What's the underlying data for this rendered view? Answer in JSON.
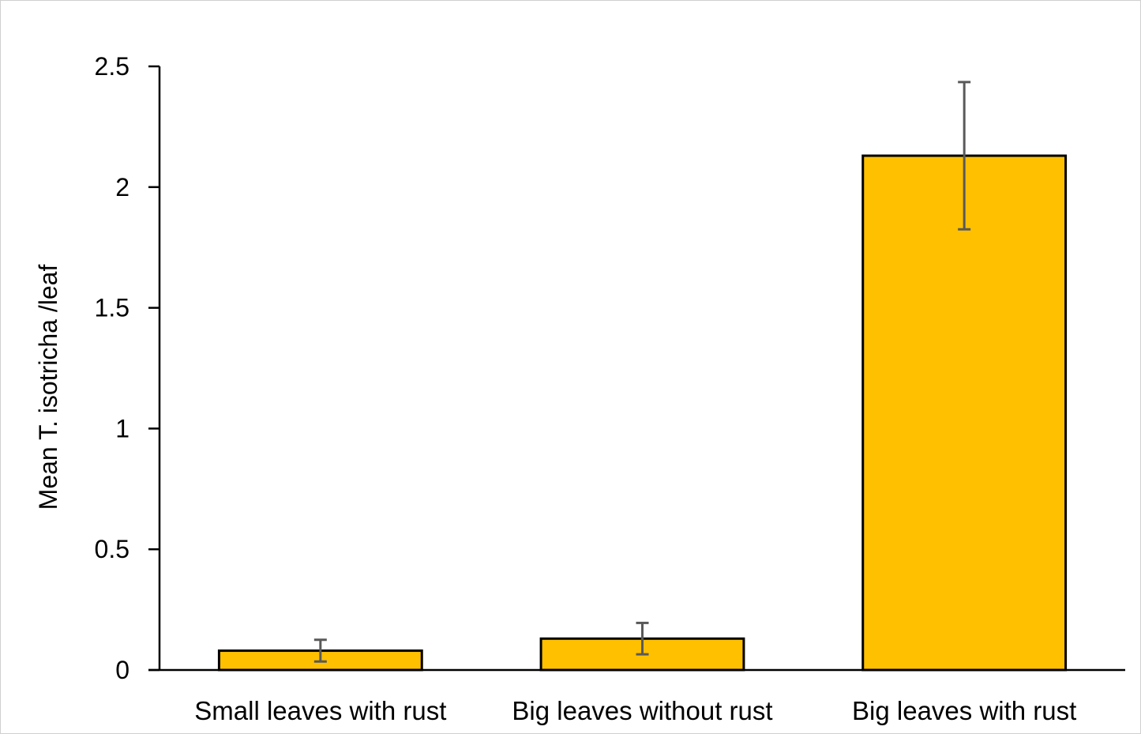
{
  "chart_data": {
    "type": "bar",
    "title": "",
    "xlabel": "",
    "ylabel": "Mean T. isotricha /leaf",
    "categories": [
      "Small leaves with rust",
      "Big leaves without rust",
      "Big leaves with rust"
    ],
    "values": [
      0.08,
      0.13,
      2.13
    ],
    "error": [
      0.045,
      0.065,
      0.305
    ],
    "ylim": [
      0,
      2.5
    ],
    "yticks": [
      0,
      0.5,
      1,
      1.5,
      2,
      2.5
    ],
    "ytick_labels": [
      "0",
      "0.5",
      "1",
      "1.5",
      "2",
      "2.5"
    ],
    "grid": false,
    "legend": "none",
    "colors": {
      "bar_fill": "#FFC000",
      "bar_stroke": "#000000",
      "error_bar": "#595959",
      "axis": "#000000"
    }
  }
}
